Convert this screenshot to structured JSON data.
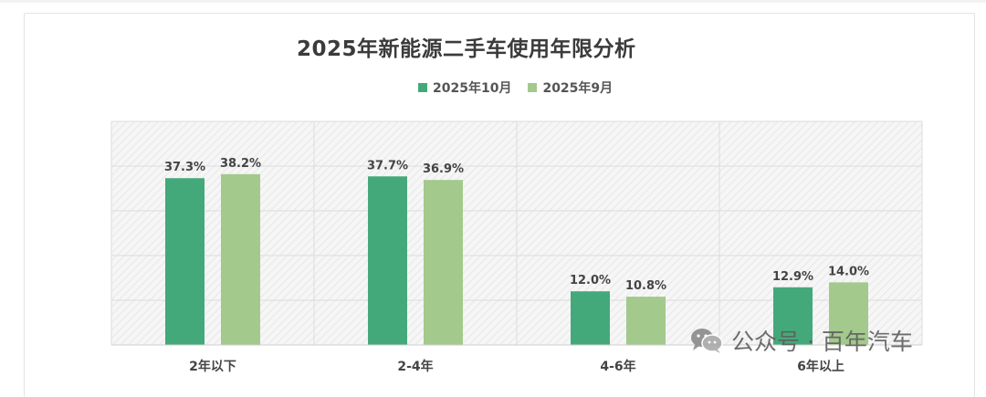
{
  "chart_data": {
    "type": "bar",
    "title": "2025年新能源二手车使用年限分析",
    "categories": [
      "2年以下",
      "2-4年",
      "4-6年",
      "6年以上"
    ],
    "series": [
      {
        "name": "2025年10月",
        "values": [
          37.3,
          37.7,
          12.0,
          12.9
        ],
        "labels": [
          "37.3%",
          "37.7%",
          "12.0%",
          "12.9%"
        ],
        "color": "#44a97a"
      },
      {
        "name": "2025年9月",
        "values": [
          38.2,
          36.9,
          10.8,
          14.0
        ],
        "labels": [
          "38.2%",
          "36.9%",
          "10.8%",
          "14.0%"
        ],
        "color": "#a3c98c"
      }
    ],
    "ylim": [
      0,
      50
    ],
    "grid": true,
    "legend_position": "top-center",
    "xlabel": "",
    "ylabel": ""
  },
  "watermark": {
    "text": "公众号 · 百年汽车",
    "icon": "wechat-icon"
  }
}
